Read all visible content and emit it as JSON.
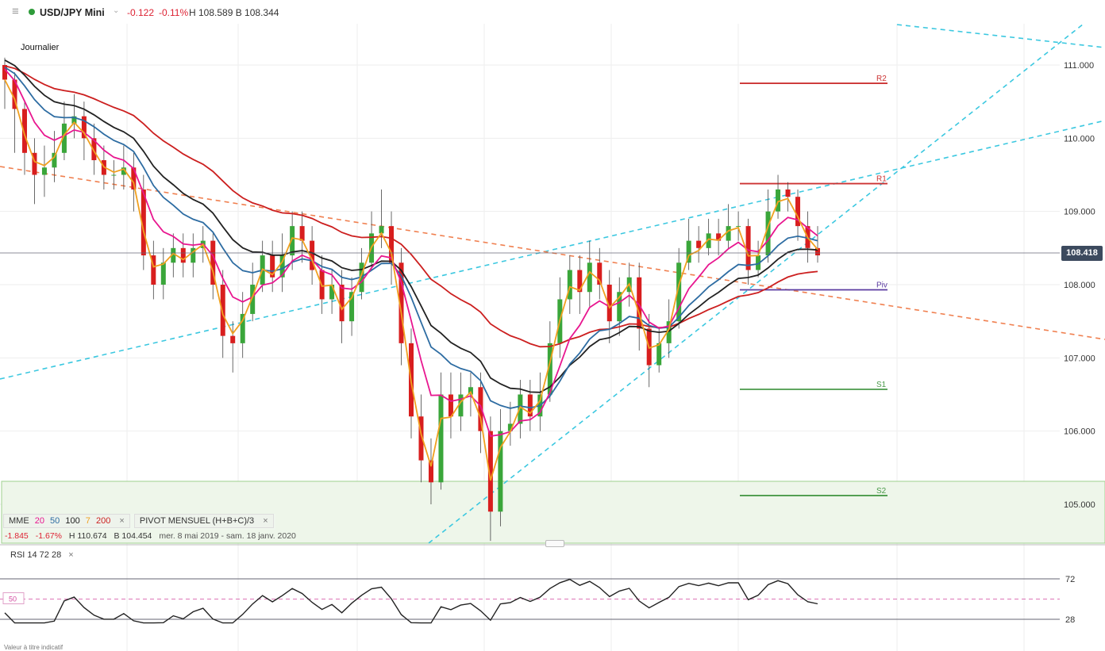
{
  "header": {
    "menu_icon": "hamburger-icon",
    "instrument": "USD/JPY Mini",
    "change": "-0.122",
    "change_pct": "-0.11%",
    "high_low": "H 108.589 B 108.344"
  },
  "period_label": "Journalier",
  "current_price": "108.418",
  "legend": {
    "mme_label": "MME",
    "mme_periods": [
      {
        "value": "20",
        "color": "#e8168f"
      },
      {
        "value": "50",
        "color": "#2d6ca2"
      },
      {
        "value": "100",
        "color": "#222222"
      },
      {
        "value": "7",
        "color": "#f0a020"
      },
      {
        "value": "200",
        "color": "#cc1f1f"
      }
    ],
    "pivot_label": "PIVOT MENSUEL (H+B+C)/3",
    "close_symbol": "×"
  },
  "stats": {
    "change": "-1.845",
    "change_pct": "-1.67%",
    "high": "H 110.674",
    "low": "B 104.454",
    "range": "mer. 8 mai 2019 - sam. 18 janv. 2020"
  },
  "rsi": {
    "label": "RSI 14 72 28",
    "close_symbol": "×",
    "upper": "72",
    "lower": "28",
    "mid": "50"
  },
  "footnote": "Valeur à titre indicatif",
  "chart_data": {
    "type": "candlestick",
    "y_ticks": [
      "111.000",
      "110.000",
      "109.000",
      "108.000",
      "107.000",
      "106.000",
      "105.000"
    ],
    "ylim": [
      104.5,
      111.5
    ],
    "colors": {
      "up": "#3aa63a",
      "down": "#d81e1e",
      "pivot": "#5a3aa0",
      "resistance": "#cc3333",
      "support": "#4a9a4a",
      "trendline_orange": "#f08050",
      "trendline_cyan": "#3cc8e0"
    },
    "pivot_levels": [
      {
        "name": "R2",
        "value": 110.75
      },
      {
        "name": "R1",
        "value": 109.38
      },
      {
        "name": "Piv",
        "value": 107.93
      },
      {
        "name": "S1",
        "value": 106.57
      },
      {
        "name": "S2",
        "value": 105.12
      }
    ],
    "candles": [
      [
        111.0,
        110.8,
        111.1,
        110.4
      ],
      [
        110.8,
        110.4,
        110.9,
        109.8
      ],
      [
        110.4,
        109.8,
        110.5,
        109.5
      ],
      [
        109.8,
        109.5,
        110.0,
        109.1
      ],
      [
        109.5,
        109.6,
        109.9,
        109.2
      ],
      [
        109.6,
        109.8,
        110.1,
        109.4
      ],
      [
        109.8,
        110.2,
        110.5,
        109.7
      ],
      [
        110.2,
        110.3,
        110.6,
        110.0
      ],
      [
        110.3,
        110.0,
        110.5,
        109.7
      ],
      [
        110.0,
        109.7,
        110.2,
        109.5
      ],
      [
        109.7,
        109.5,
        109.9,
        109.3
      ],
      [
        109.5,
        109.5,
        109.7,
        109.3
      ],
      [
        109.5,
        109.6,
        109.9,
        109.3
      ],
      [
        109.6,
        109.3,
        109.8,
        109.0
      ],
      [
        109.3,
        108.4,
        109.5,
        108.2
      ],
      [
        108.4,
        108.0,
        108.6,
        107.8
      ],
      [
        108.0,
        108.3,
        108.5,
        107.8
      ],
      [
        108.3,
        108.5,
        108.7,
        108.1
      ],
      [
        108.5,
        108.3,
        108.7,
        108.1
      ],
      [
        108.3,
        108.5,
        108.7,
        108.1
      ],
      [
        108.5,
        108.6,
        108.8,
        108.3
      ],
      [
        108.6,
        108.0,
        108.7,
        107.8
      ],
      [
        108.0,
        107.3,
        108.2,
        107.0
      ],
      [
        107.3,
        107.2,
        107.5,
        106.8
      ],
      [
        107.2,
        107.6,
        107.9,
        107.0
      ],
      [
        107.6,
        108.0,
        108.3,
        107.5
      ],
      [
        108.0,
        108.4,
        108.6,
        107.9
      ],
      [
        108.4,
        108.1,
        108.6,
        107.9
      ],
      [
        108.1,
        108.4,
        108.7,
        107.9
      ],
      [
        108.4,
        108.8,
        109.0,
        108.2
      ],
      [
        108.8,
        108.6,
        109.0,
        108.3
      ],
      [
        108.6,
        108.2,
        108.8,
        108.0
      ],
      [
        108.2,
        107.8,
        108.4,
        107.6
      ],
      [
        107.8,
        108.0,
        108.2,
        107.6
      ],
      [
        108.0,
        107.5,
        108.2,
        107.2
      ],
      [
        107.5,
        107.9,
        108.1,
        107.3
      ],
      [
        107.9,
        108.3,
        108.5,
        107.8
      ],
      [
        108.3,
        108.7,
        109.0,
        108.2
      ],
      [
        108.7,
        108.8,
        109.3,
        108.5
      ],
      [
        108.8,
        108.3,
        109.0,
        108.0
      ],
      [
        108.3,
        107.2,
        108.5,
        106.9
      ],
      [
        107.2,
        106.2,
        107.4,
        105.9
      ],
      [
        106.2,
        105.6,
        106.5,
        105.3
      ],
      [
        105.6,
        105.3,
        105.9,
        105.0
      ],
      [
        105.3,
        106.5,
        106.8,
        105.2
      ],
      [
        106.5,
        106.2,
        106.8,
        105.9
      ],
      [
        106.2,
        106.5,
        106.8,
        106.0
      ],
      [
        106.5,
        106.6,
        106.8,
        106.2
      ],
      [
        106.6,
        106.0,
        106.8,
        105.7
      ],
      [
        106.0,
        104.9,
        106.2,
        104.5
      ],
      [
        104.9,
        106.0,
        106.3,
        104.7
      ],
      [
        106.0,
        106.1,
        106.4,
        105.8
      ],
      [
        106.1,
        106.5,
        106.7,
        105.9
      ],
      [
        106.5,
        106.2,
        106.7,
        106.0
      ],
      [
        106.2,
        106.5,
        106.8,
        106.0
      ],
      [
        106.5,
        107.2,
        107.5,
        106.4
      ],
      [
        107.2,
        107.8,
        108.1,
        107.0
      ],
      [
        107.8,
        108.2,
        108.4,
        107.6
      ],
      [
        108.2,
        107.9,
        108.4,
        107.6
      ],
      [
        107.9,
        108.3,
        108.6,
        107.7
      ],
      [
        108.3,
        108.0,
        108.5,
        107.8
      ],
      [
        108.0,
        107.5,
        108.2,
        107.2
      ],
      [
        107.5,
        107.9,
        108.1,
        107.3
      ],
      [
        107.9,
        108.1,
        108.3,
        107.7
      ],
      [
        108.1,
        107.4,
        108.3,
        107.1
      ],
      [
        107.4,
        106.9,
        107.6,
        106.6
      ],
      [
        106.9,
        107.2,
        107.4,
        106.8
      ],
      [
        107.2,
        107.5,
        107.8,
        107.0
      ],
      [
        107.5,
        108.3,
        108.5,
        107.4
      ],
      [
        108.3,
        108.6,
        108.9,
        108.2
      ],
      [
        108.6,
        108.5,
        108.8,
        108.3
      ],
      [
        108.5,
        108.7,
        108.9,
        108.4
      ],
      [
        108.7,
        108.6,
        108.9,
        108.4
      ],
      [
        108.6,
        108.8,
        109.1,
        108.5
      ],
      [
        108.8,
        108.8,
        109.0,
        108.6
      ],
      [
        108.8,
        108.2,
        108.9,
        108.0
      ],
      [
        108.2,
        108.4,
        108.6,
        108.1
      ],
      [
        108.4,
        109.0,
        109.3,
        108.3
      ],
      [
        109.0,
        109.3,
        109.5,
        108.9
      ],
      [
        109.3,
        109.2,
        109.4,
        109.0
      ],
      [
        109.2,
        108.8,
        109.3,
        108.6
      ],
      [
        108.8,
        108.5,
        109.0,
        108.3
      ],
      [
        108.5,
        108.4,
        108.8,
        108.3
      ]
    ]
  }
}
